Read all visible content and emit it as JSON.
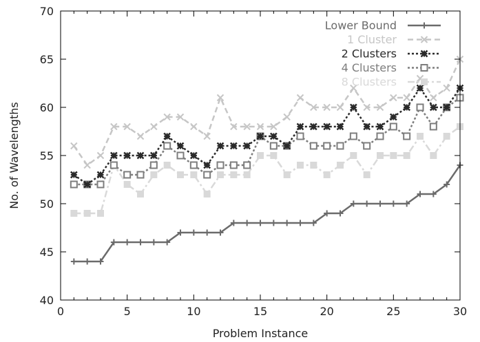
{
  "chart_data": {
    "type": "line",
    "title": "",
    "xlabel": "Problem Instance",
    "ylabel": "No. of Wavelengths",
    "xlim": [
      0,
      30
    ],
    "ylim": [
      40,
      70
    ],
    "xticks": [
      0,
      5,
      10,
      15,
      20,
      25,
      30
    ],
    "xtick_labels": [
      "0",
      "5",
      "10",
      "15",
      "20",
      "25",
      "30"
    ],
    "yticks": [
      40,
      45,
      50,
      55,
      60,
      65,
      70
    ],
    "ytick_labels": [
      "40",
      "45",
      "50",
      "55",
      "60",
      "65",
      "70"
    ],
    "grid": false,
    "legend_position": "top-right",
    "x": [
      1,
      2,
      3,
      4,
      5,
      6,
      7,
      8,
      9,
      10,
      11,
      12,
      13,
      14,
      15,
      16,
      17,
      18,
      19,
      20,
      21,
      22,
      23,
      24,
      25,
      26,
      27,
      28,
      29,
      30
    ],
    "series": [
      {
        "name": "Lower Bound",
        "color": "#6b6b6b",
        "line": "solid",
        "marker": "plus",
        "values": [
          44,
          44,
          44,
          46,
          46,
          46,
          46,
          46,
          47,
          47,
          47,
          47,
          48,
          48,
          48,
          48,
          48,
          48,
          48,
          49,
          49,
          50,
          50,
          50,
          50,
          50,
          51,
          51,
          52,
          54
        ]
      },
      {
        "name": "1 Cluster",
        "color": "#c6c6c6",
        "line": "dashed",
        "marker": "x",
        "values": [
          56,
          54,
          55,
          58,
          58,
          57,
          58,
          59,
          59,
          58,
          57,
          61,
          58,
          58,
          58,
          58,
          59,
          61,
          60,
          60,
          60,
          62,
          60,
          60,
          61,
          61,
          63,
          61,
          62,
          65
        ]
      },
      {
        "name": "2 Clusters",
        "color": "#2a2a2a",
        "line": "dotted",
        "marker": "star",
        "values": [
          53,
          52,
          53,
          55,
          55,
          55,
          55,
          57,
          56,
          55,
          54,
          56,
          56,
          56,
          57,
          57,
          56,
          58,
          58,
          58,
          58,
          60,
          58,
          58,
          59,
          60,
          62,
          60,
          60,
          62
        ]
      },
      {
        "name": "4 Clusters",
        "color": "#7d7d7d",
        "line": "dotted",
        "marker": "square",
        "values": [
          52,
          52,
          52,
          54,
          53,
          53,
          54,
          56,
          55,
          54,
          53,
          54,
          54,
          54,
          57,
          56,
          56,
          57,
          56,
          56,
          56,
          57,
          56,
          57,
          58,
          57,
          60,
          58,
          60,
          61
        ]
      },
      {
        "name": "8 Clusters",
        "color": "#d9d9d9",
        "line": "dashdot",
        "marker": "filled-square",
        "values": [
          49,
          49,
          49,
          54,
          52,
          51,
          53,
          54,
          53,
          53,
          51,
          53,
          53,
          53,
          55,
          55,
          53,
          54,
          54,
          53,
          54,
          55,
          53,
          55,
          55,
          55,
          57,
          55,
          57,
          58
        ]
      }
    ]
  }
}
